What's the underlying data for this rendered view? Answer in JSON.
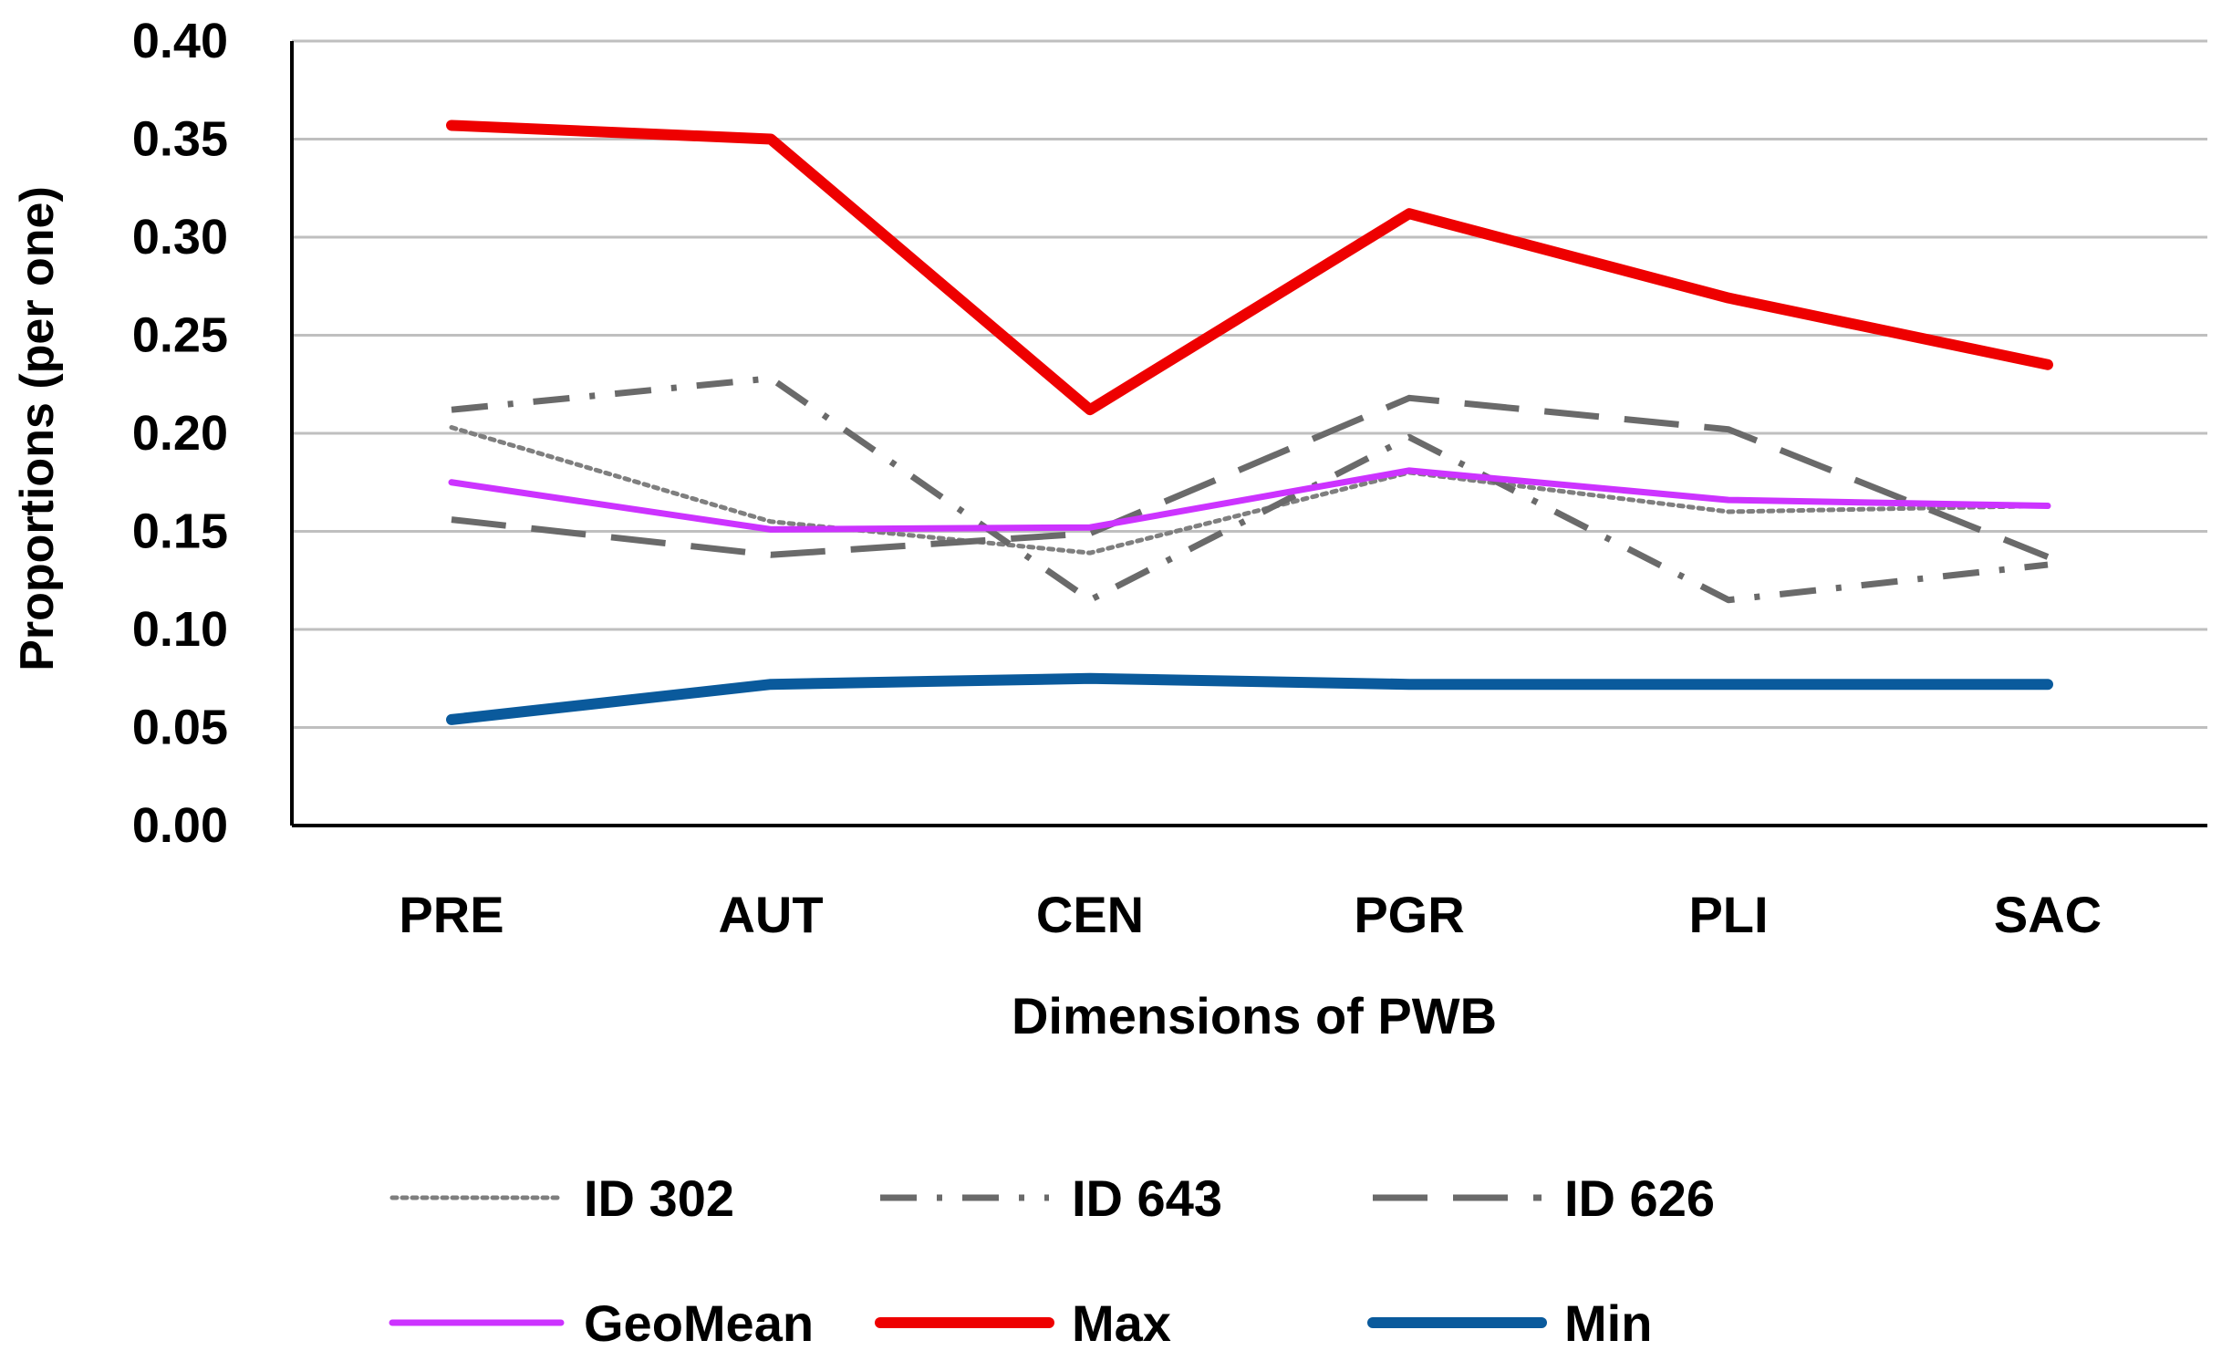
{
  "chart_data": {
    "type": "line",
    "title": "",
    "xlabel": "Dimensions of PWB",
    "ylabel": "Proportions (per one)",
    "ylim": [
      0,
      0.4
    ],
    "yticks": [
      "0.00",
      "0.05",
      "0.10",
      "0.15",
      "0.20",
      "0.25",
      "0.30",
      "0.35",
      "0.40"
    ],
    "grid": true,
    "legend_position": "bottom",
    "categories": [
      "PRE",
      "AUT",
      "CEN",
      "PGR",
      "PLI",
      "SAC"
    ],
    "series": [
      {
        "name": "ID 302",
        "values": [
          0.203,
          0.155,
          0.139,
          0.18,
          0.16,
          0.163
        ],
        "color": "#7f7f7f",
        "style": "dotted"
      },
      {
        "name": "ID 643",
        "values": [
          0.212,
          0.228,
          0.115,
          0.198,
          0.115,
          0.133
        ],
        "color": "#6a6a6a",
        "style": "dashdot"
      },
      {
        "name": "ID 626",
        "values": [
          0.156,
          0.138,
          0.149,
          0.218,
          0.202,
          0.137
        ],
        "color": "#6a6a6a",
        "style": "longdash"
      },
      {
        "name": "GeoMean",
        "values": [
          0.175,
          0.151,
          0.152,
          0.181,
          0.166,
          0.163
        ],
        "color": "#cc33ff",
        "style": "solid"
      },
      {
        "name": "Max",
        "values": [
          0.357,
          0.35,
          0.212,
          0.312,
          0.269,
          0.235
        ],
        "color": "#ee0000",
        "style": "solid"
      },
      {
        "name": "Min",
        "values": [
          0.054,
          0.072,
          0.075,
          0.072,
          0.072,
          0.072
        ],
        "color": "#0a5a9c",
        "style": "solid"
      }
    ]
  }
}
